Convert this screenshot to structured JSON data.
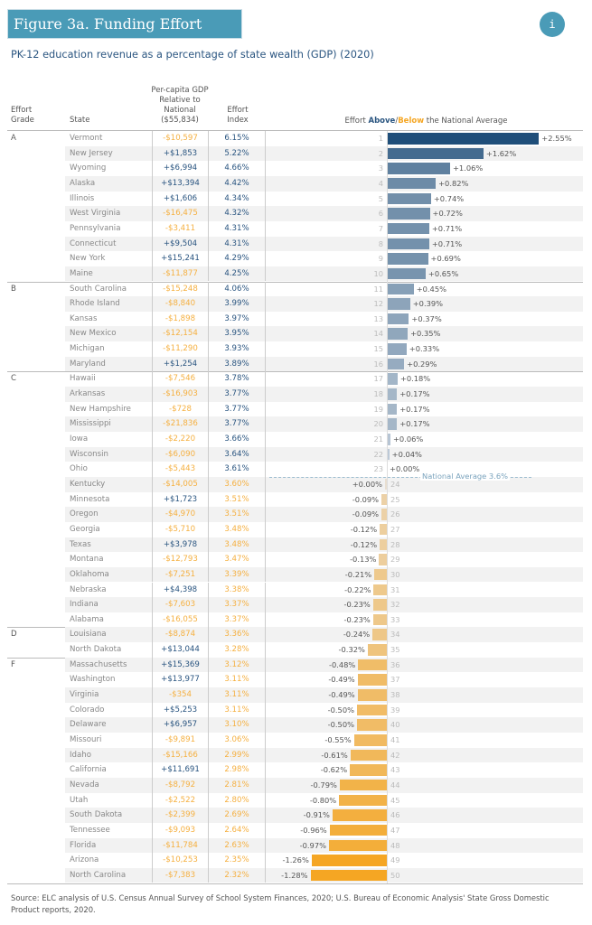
{
  "header": {
    "title": "Figure 3a. Funding Effort",
    "info_icon": "info-icon",
    "subtitle": "PK-12 education revenue as a percentage of state wealth (GDP) (2020)"
  },
  "columns": {
    "grade": [
      "Effort",
      "Grade"
    ],
    "state": "State",
    "gdp": [
      "Per-capita GDP",
      "Relative to",
      "National",
      "($55,834)"
    ],
    "index": [
      "Effort",
      "Index"
    ],
    "chart_pre": "Effort ",
    "chart_above": "Above",
    "chart_slash": "/",
    "chart_below": "Below",
    "chart_post": " the National Average"
  },
  "colors": {
    "above": "#2a5580",
    "below": "#f5b041",
    "bar_above_max": "#1f4e79",
    "bar_below_max": "#f5a623",
    "title_bg": "#4a9bb7"
  },
  "chart_data": {
    "type": "bar",
    "orientation": "horizontal",
    "title": "Effort Above/Below the National Average",
    "reference_line": {
      "label": "National Average 3.6%",
      "value": 3.6
    },
    "rows": [
      {
        "rank": 1,
        "grade": "A",
        "state": "Vermont",
        "gdp": "-$10,597",
        "index": "6.15%",
        "diff": 2.55,
        "label": "+2.55%"
      },
      {
        "rank": 2,
        "grade": "A",
        "state": "New Jersey",
        "gdp": "+$1,853",
        "index": "5.22%",
        "diff": 1.62,
        "label": "+1.62%"
      },
      {
        "rank": 3,
        "grade": "A",
        "state": "Wyoming",
        "gdp": "+$6,994",
        "index": "4.66%",
        "diff": 1.06,
        "label": "+1.06%"
      },
      {
        "rank": 4,
        "grade": "A",
        "state": "Alaska",
        "gdp": "+$13,394",
        "index": "4.42%",
        "diff": 0.82,
        "label": "+0.82%"
      },
      {
        "rank": 5,
        "grade": "A",
        "state": "Illinois",
        "gdp": "+$1,606",
        "index": "4.34%",
        "diff": 0.74,
        "label": "+0.74%"
      },
      {
        "rank": 6,
        "grade": "A",
        "state": "West Virginia",
        "gdp": "-$16,475",
        "index": "4.32%",
        "diff": 0.72,
        "label": "+0.72%"
      },
      {
        "rank": 7,
        "grade": "A",
        "state": "Pennsylvania",
        "gdp": "-$3,411",
        "index": "4.31%",
        "diff": 0.71,
        "label": "+0.71%"
      },
      {
        "rank": 8,
        "grade": "A",
        "state": "Connecticut",
        "gdp": "+$9,504",
        "index": "4.31%",
        "diff": 0.71,
        "label": "+0.71%"
      },
      {
        "rank": 9,
        "grade": "A",
        "state": "New York",
        "gdp": "+$15,241",
        "index": "4.29%",
        "diff": 0.69,
        "label": "+0.69%"
      },
      {
        "rank": 10,
        "grade": "A",
        "state": "Maine",
        "gdp": "-$11,877",
        "index": "4.25%",
        "diff": 0.65,
        "label": "+0.65%"
      },
      {
        "rank": 11,
        "grade": "B",
        "state": "South Carolina",
        "gdp": "-$15,248",
        "index": "4.06%",
        "diff": 0.45,
        "label": "+0.45%"
      },
      {
        "rank": 12,
        "grade": "B",
        "state": "Rhode Island",
        "gdp": "-$8,840",
        "index": "3.99%",
        "diff": 0.39,
        "label": "+0.39%"
      },
      {
        "rank": 13,
        "grade": "B",
        "state": "Kansas",
        "gdp": "-$1,898",
        "index": "3.97%",
        "diff": 0.37,
        "label": "+0.37%"
      },
      {
        "rank": 14,
        "grade": "B",
        "state": "New Mexico",
        "gdp": "-$12,154",
        "index": "3.95%",
        "diff": 0.35,
        "label": "+0.35%"
      },
      {
        "rank": 15,
        "grade": "B",
        "state": "Michigan",
        "gdp": "-$11,290",
        "index": "3.93%",
        "diff": 0.33,
        "label": "+0.33%"
      },
      {
        "rank": 16,
        "grade": "B",
        "state": "Maryland",
        "gdp": "+$1,254",
        "index": "3.89%",
        "diff": 0.29,
        "label": "+0.29%"
      },
      {
        "rank": 17,
        "grade": "C",
        "state": "Hawaii",
        "gdp": "-$7,546",
        "index": "3.78%",
        "diff": 0.18,
        "label": "+0.18%"
      },
      {
        "rank": 18,
        "grade": "C",
        "state": "Arkansas",
        "gdp": "-$16,903",
        "index": "3.77%",
        "diff": 0.17,
        "label": "+0.17%"
      },
      {
        "rank": 19,
        "grade": "C",
        "state": "New Hampshire",
        "gdp": "-$728",
        "index": "3.77%",
        "diff": 0.17,
        "label": "+0.17%"
      },
      {
        "rank": 20,
        "grade": "C",
        "state": "Mississippi",
        "gdp": "-$21,836",
        "index": "3.77%",
        "diff": 0.17,
        "label": "+0.17%"
      },
      {
        "rank": 21,
        "grade": "C",
        "state": "Iowa",
        "gdp": "-$2,220",
        "index": "3.66%",
        "diff": 0.06,
        "label": "+0.06%"
      },
      {
        "rank": 22,
        "grade": "C",
        "state": "Wisconsin",
        "gdp": "-$6,090",
        "index": "3.64%",
        "diff": 0.04,
        "label": "+0.04%"
      },
      {
        "rank": 23,
        "grade": "C",
        "state": "Ohio",
        "gdp": "-$5,443",
        "index": "3.61%",
        "diff": 0.0,
        "label": "+0.00%"
      },
      {
        "rank": 24,
        "grade": "C",
        "state": "Kentucky",
        "gdp": "-$14,005",
        "index": "3.60%",
        "diff": -0.001,
        "label": "+0.00%"
      },
      {
        "rank": 25,
        "grade": "C",
        "state": "Minnesota",
        "gdp": "+$1,723",
        "index": "3.51%",
        "diff": -0.09,
        "label": "-0.09%"
      },
      {
        "rank": 26,
        "grade": "C",
        "state": "Oregon",
        "gdp": "-$4,970",
        "index": "3.51%",
        "diff": -0.09,
        "label": "-0.09%"
      },
      {
        "rank": 27,
        "grade": "C",
        "state": "Georgia",
        "gdp": "-$5,710",
        "index": "3.48%",
        "diff": -0.12,
        "label": "-0.12%"
      },
      {
        "rank": 28,
        "grade": "C",
        "state": "Texas",
        "gdp": "+$3,978",
        "index": "3.48%",
        "diff": -0.12,
        "label": "-0.12%"
      },
      {
        "rank": 29,
        "grade": "C",
        "state": "Montana",
        "gdp": "-$12,793",
        "index": "3.47%",
        "diff": -0.13,
        "label": "-0.13%"
      },
      {
        "rank": 30,
        "grade": "C",
        "state": "Oklahoma",
        "gdp": "-$7,251",
        "index": "3.39%",
        "diff": -0.21,
        "label": "-0.21%"
      },
      {
        "rank": 31,
        "grade": "C",
        "state": "Nebraska",
        "gdp": "+$4,398",
        "index": "3.38%",
        "diff": -0.22,
        "label": "-0.22%"
      },
      {
        "rank": 32,
        "grade": "C",
        "state": "Indiana",
        "gdp": "-$7,603",
        "index": "3.37%",
        "diff": -0.23,
        "label": "-0.23%"
      },
      {
        "rank": 33,
        "grade": "C",
        "state": "Alabama",
        "gdp": "-$16,055",
        "index": "3.37%",
        "diff": -0.23,
        "label": "-0.23%"
      },
      {
        "rank": 34,
        "grade": "D",
        "state": "Louisiana",
        "gdp": "-$8,874",
        "index": "3.36%",
        "diff": -0.24,
        "label": "-0.24%"
      },
      {
        "rank": 35,
        "grade": "D",
        "state": "North Dakota",
        "gdp": "+$13,044",
        "index": "3.28%",
        "diff": -0.32,
        "label": "-0.32%"
      },
      {
        "rank": 36,
        "grade": "F",
        "state": "Massachusetts",
        "gdp": "+$15,369",
        "index": "3.12%",
        "diff": -0.48,
        "label": "-0.48%"
      },
      {
        "rank": 37,
        "grade": "F",
        "state": "Washington",
        "gdp": "+$13,977",
        "index": "3.11%",
        "diff": -0.49,
        "label": "-0.49%"
      },
      {
        "rank": 38,
        "grade": "F",
        "state": "Virginia",
        "gdp": "-$354",
        "index": "3.11%",
        "diff": -0.49,
        "label": "-0.49%"
      },
      {
        "rank": 39,
        "grade": "F",
        "state": "Colorado",
        "gdp": "+$5,253",
        "index": "3.11%",
        "diff": -0.5,
        "label": "-0.50%"
      },
      {
        "rank": 40,
        "grade": "F",
        "state": "Delaware",
        "gdp": "+$6,957",
        "index": "3.10%",
        "diff": -0.5,
        "label": "-0.50%"
      },
      {
        "rank": 41,
        "grade": "F",
        "state": "Missouri",
        "gdp": "-$9,891",
        "index": "3.06%",
        "diff": -0.55,
        "label": "-0.55%"
      },
      {
        "rank": 42,
        "grade": "F",
        "state": "Idaho",
        "gdp": "-$15,166",
        "index": "2.99%",
        "diff": -0.61,
        "label": "-0.61%"
      },
      {
        "rank": 43,
        "grade": "F",
        "state": "California",
        "gdp": "+$11,691",
        "index": "2.98%",
        "diff": -0.62,
        "label": "-0.62%"
      },
      {
        "rank": 44,
        "grade": "F",
        "state": "Nevada",
        "gdp": "-$8,792",
        "index": "2.81%",
        "diff": -0.79,
        "label": "-0.79%"
      },
      {
        "rank": 45,
        "grade": "F",
        "state": "Utah",
        "gdp": "-$2,522",
        "index": "2.80%",
        "diff": -0.8,
        "label": "-0.80%"
      },
      {
        "rank": 46,
        "grade": "F",
        "state": "South Dakota",
        "gdp": "-$2,399",
        "index": "2.69%",
        "diff": -0.91,
        "label": "-0.91%"
      },
      {
        "rank": 47,
        "grade": "F",
        "state": "Tennessee",
        "gdp": "-$9,093",
        "index": "2.64%",
        "diff": -0.96,
        "label": "-0.96%"
      },
      {
        "rank": 48,
        "grade": "F",
        "state": "Florida",
        "gdp": "-$11,784",
        "index": "2.63%",
        "diff": -0.97,
        "label": "-0.97%"
      },
      {
        "rank": 49,
        "grade": "F",
        "state": "Arizona",
        "gdp": "-$10,253",
        "index": "2.35%",
        "diff": -1.26,
        "label": "-1.26%"
      },
      {
        "rank": 50,
        "grade": "F",
        "state": "North Carolina",
        "gdp": "-$7,383",
        "index": "2.32%",
        "diff": -1.28,
        "label": "-1.28%"
      }
    ]
  },
  "footer": {
    "source": "Source: ELC analysis of U.S. Census Annual Survey of School System Finances, 2020; U.S. Bureau of Economic Analysis' State Gross Domestic Product reports, 2020."
  }
}
